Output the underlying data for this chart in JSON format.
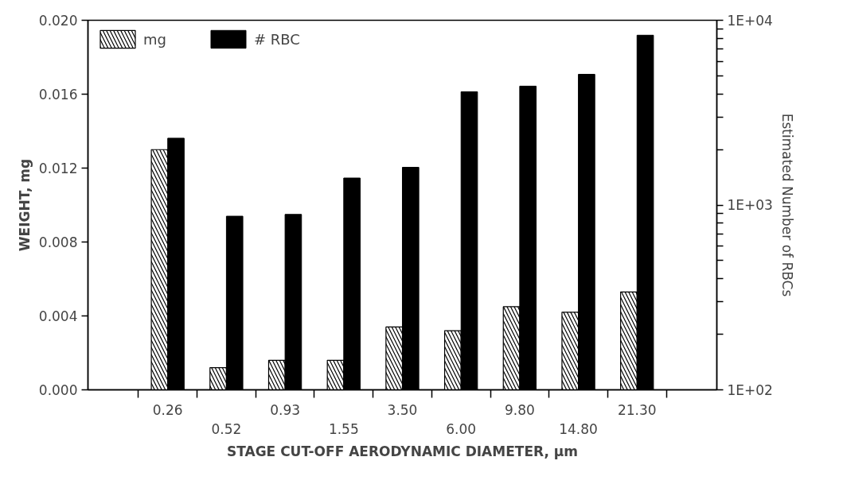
{
  "chart_data": {
    "type": "bar",
    "xlabel": "STAGE CUT-OFF AERODYNAMIC DIAMETER, µm",
    "ylabel": "WEIGHT, mg",
    "y2label": "Estimated Number of RBCs",
    "categories": [
      "0.26",
      "0.52",
      "0.93",
      "1.55",
      "3.50",
      "6.00",
      "9.80",
      "14.80",
      "21.30"
    ],
    "series": [
      {
        "name": "mg",
        "color": "#ffffff",
        "values": [
          0.013,
          0.0012,
          0.0016,
          0.0016,
          0.0034,
          0.0032,
          0.0045,
          0.0042,
          0.0053
        ]
      },
      {
        "name": "# RBC",
        "color": "#000000",
        "axis": "y2",
        "values": [
          2300,
          870,
          890,
          1400,
          1600,
          4100,
          4400,
          5100,
          8300
        ]
      }
    ],
    "ylim": [
      0,
      0.02
    ],
    "yticks": [
      {
        "value": 0,
        "label": "0.000"
      },
      {
        "value": 0.004,
        "label": "0.004"
      },
      {
        "value": 0.008,
        "label": "0.008"
      },
      {
        "value": 0.012,
        "label": "0.012"
      },
      {
        "value": 0.016,
        "label": "0.016"
      },
      {
        "value": 0.02,
        "label": "0.020"
      }
    ],
    "y2lim": [
      100,
      10000
    ],
    "y2ticks": [
      {
        "value": 100,
        "label": "1E+02"
      },
      {
        "value": 1000,
        "label": "1E+03"
      },
      {
        "value": 10000,
        "label": "1E+04"
      }
    ],
    "log": "y2",
    "grid": false,
    "legend": "top left"
  }
}
